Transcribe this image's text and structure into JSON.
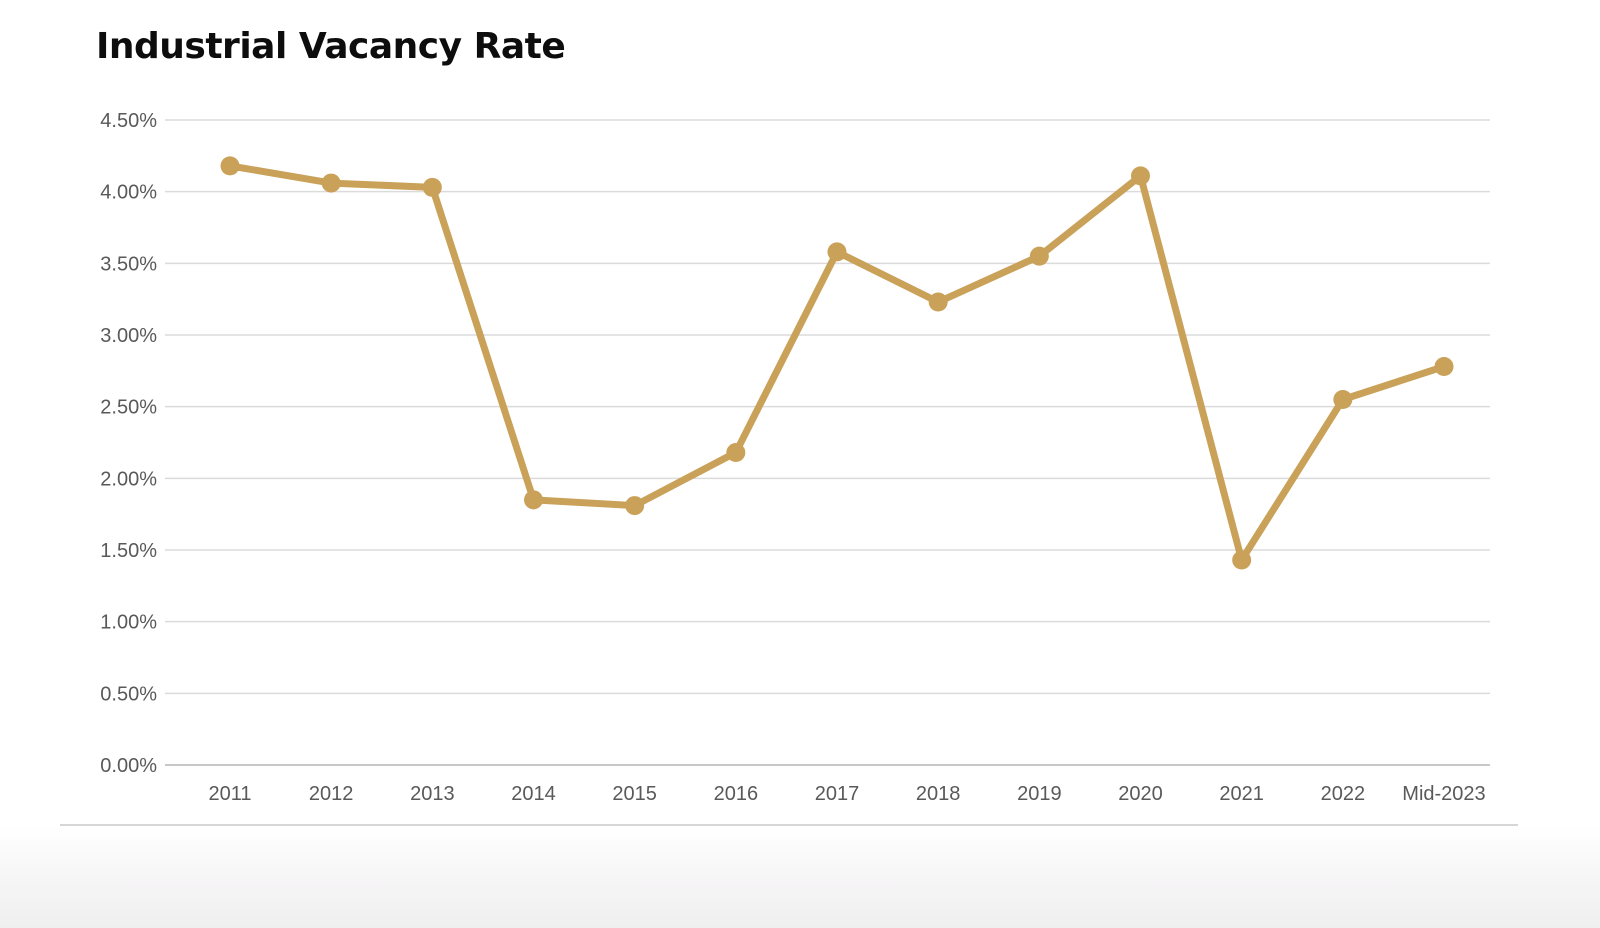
{
  "chart_data": {
    "type": "line",
    "title": "Industrial Vacancy Rate",
    "categories": [
      "2011",
      "2012",
      "2013",
      "2014",
      "2015",
      "2016",
      "2017",
      "2018",
      "2019",
      "2020",
      "2021",
      "2022",
      "Mid-2023"
    ],
    "series": [
      {
        "name": "Industrial Vacancy Rate",
        "values": [
          4.18,
          4.06,
          4.03,
          1.85,
          1.81,
          2.18,
          3.58,
          3.23,
          3.55,
          4.11,
          1.43,
          2.55,
          2.78
        ]
      }
    ],
    "xlabel": "",
    "ylabel": "",
    "ylim": [
      0,
      4.5
    ],
    "y_tick_step": 0.5,
    "y_tick_labels": [
      "4.50%",
      "4.00%",
      "3.50%",
      "3.00%",
      "2.50%",
      "2.00%",
      "1.50%",
      "1.00%",
      "0.50%",
      "0.00%"
    ],
    "grid": true,
    "legend_position": "none",
    "colors": {
      "line": "#C9A158",
      "marker": "#C9A158",
      "gridline": "#DBDBDB",
      "axis_line": "#C8C8C8",
      "tick_label": "#595959",
      "title": "#0d0d0d"
    }
  }
}
